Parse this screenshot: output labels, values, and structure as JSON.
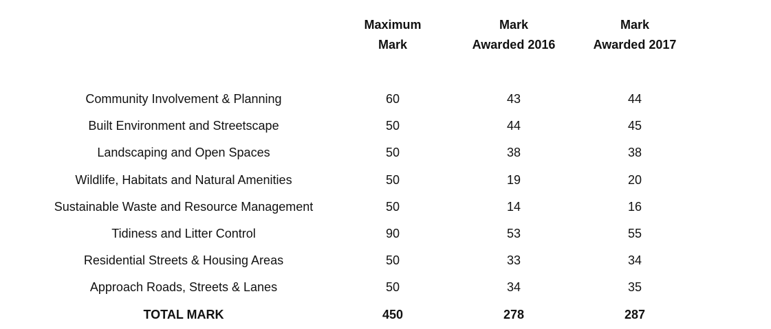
{
  "headers": {
    "max_mark": [
      "Maximum",
      "Mark"
    ],
    "mark_2016": [
      "Mark",
      "Awarded 2016"
    ],
    "mark_2017": [
      "Mark",
      "Awarded 2017"
    ]
  },
  "rows": [
    {
      "category": "Community Involvement & Planning",
      "max": "60",
      "y2016": "43",
      "y2017": "44"
    },
    {
      "category": "Built Environment and Streetscape",
      "max": "50",
      "y2016": "44",
      "y2017": "45"
    },
    {
      "category": "Landscaping and Open Spaces",
      "max": "50",
      "y2016": "38",
      "y2017": "38"
    },
    {
      "category": "Wildlife, Habitats and Natural Amenities",
      "max": "50",
      "y2016": "19",
      "y2017": "20"
    },
    {
      "category": "Sustainable Waste and Resource Management",
      "max": "50",
      "y2016": "14",
      "y2017": "16"
    },
    {
      "category": "Tidiness and Litter Control",
      "max": "90",
      "y2016": "53",
      "y2017": "55"
    },
    {
      "category": "Residential Streets & Housing Areas",
      "max": "50",
      "y2016": "33",
      "y2017": "34"
    },
    {
      "category": "Approach Roads, Streets & Lanes",
      "max": "50",
      "y2016": "34",
      "y2017": "35"
    }
  ],
  "total": {
    "label": "TOTAL MARK",
    "max": "450",
    "y2016": "278",
    "y2017": "287"
  }
}
